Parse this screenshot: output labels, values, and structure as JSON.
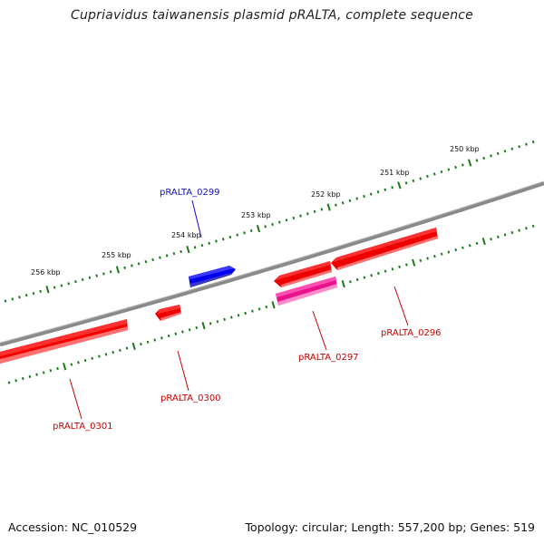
{
  "title": "Cupriavidus taiwanensis plasmid pRALTA, complete sequence",
  "footer": {
    "accession": "Accession: NC_010529",
    "summary": "Topology: circular; Length: 557,200 bp; Genes: 519"
  },
  "colors": {
    "backbone": "#808080",
    "ticks": "#1a7a1a",
    "forward_gene": "#0000ff",
    "reverse_gene": "#ff0000",
    "highlight_gene": "#ff1493",
    "forward_label": "#1010c0",
    "reverse_label": "#c80000"
  },
  "scale_labels": [
    "250 kbp",
    "251 kbp",
    "252 kbp",
    "253 kbp",
    "254 kbp",
    "255 kbp",
    "256 kbp"
  ],
  "genes": [
    {
      "id": "pRALTA_0299",
      "label": "pRALTA_0299",
      "strand": "forward"
    },
    {
      "id": "pRALTA_0300",
      "label": "pRALTA_0300",
      "strand": "reverse"
    },
    {
      "id": "pRALTA_0301",
      "label": "pRALTA_0301",
      "strand": "reverse"
    },
    {
      "id": "pRALTA_0297",
      "label": "pRALTA_0297",
      "strand": "reverse"
    },
    {
      "id": "pRALTA_0296",
      "label": "pRALTA_0296",
      "strand": "reverse"
    },
    {
      "id": "pRALTA_0298",
      "label": "",
      "strand": "reverse-highlight"
    }
  ]
}
